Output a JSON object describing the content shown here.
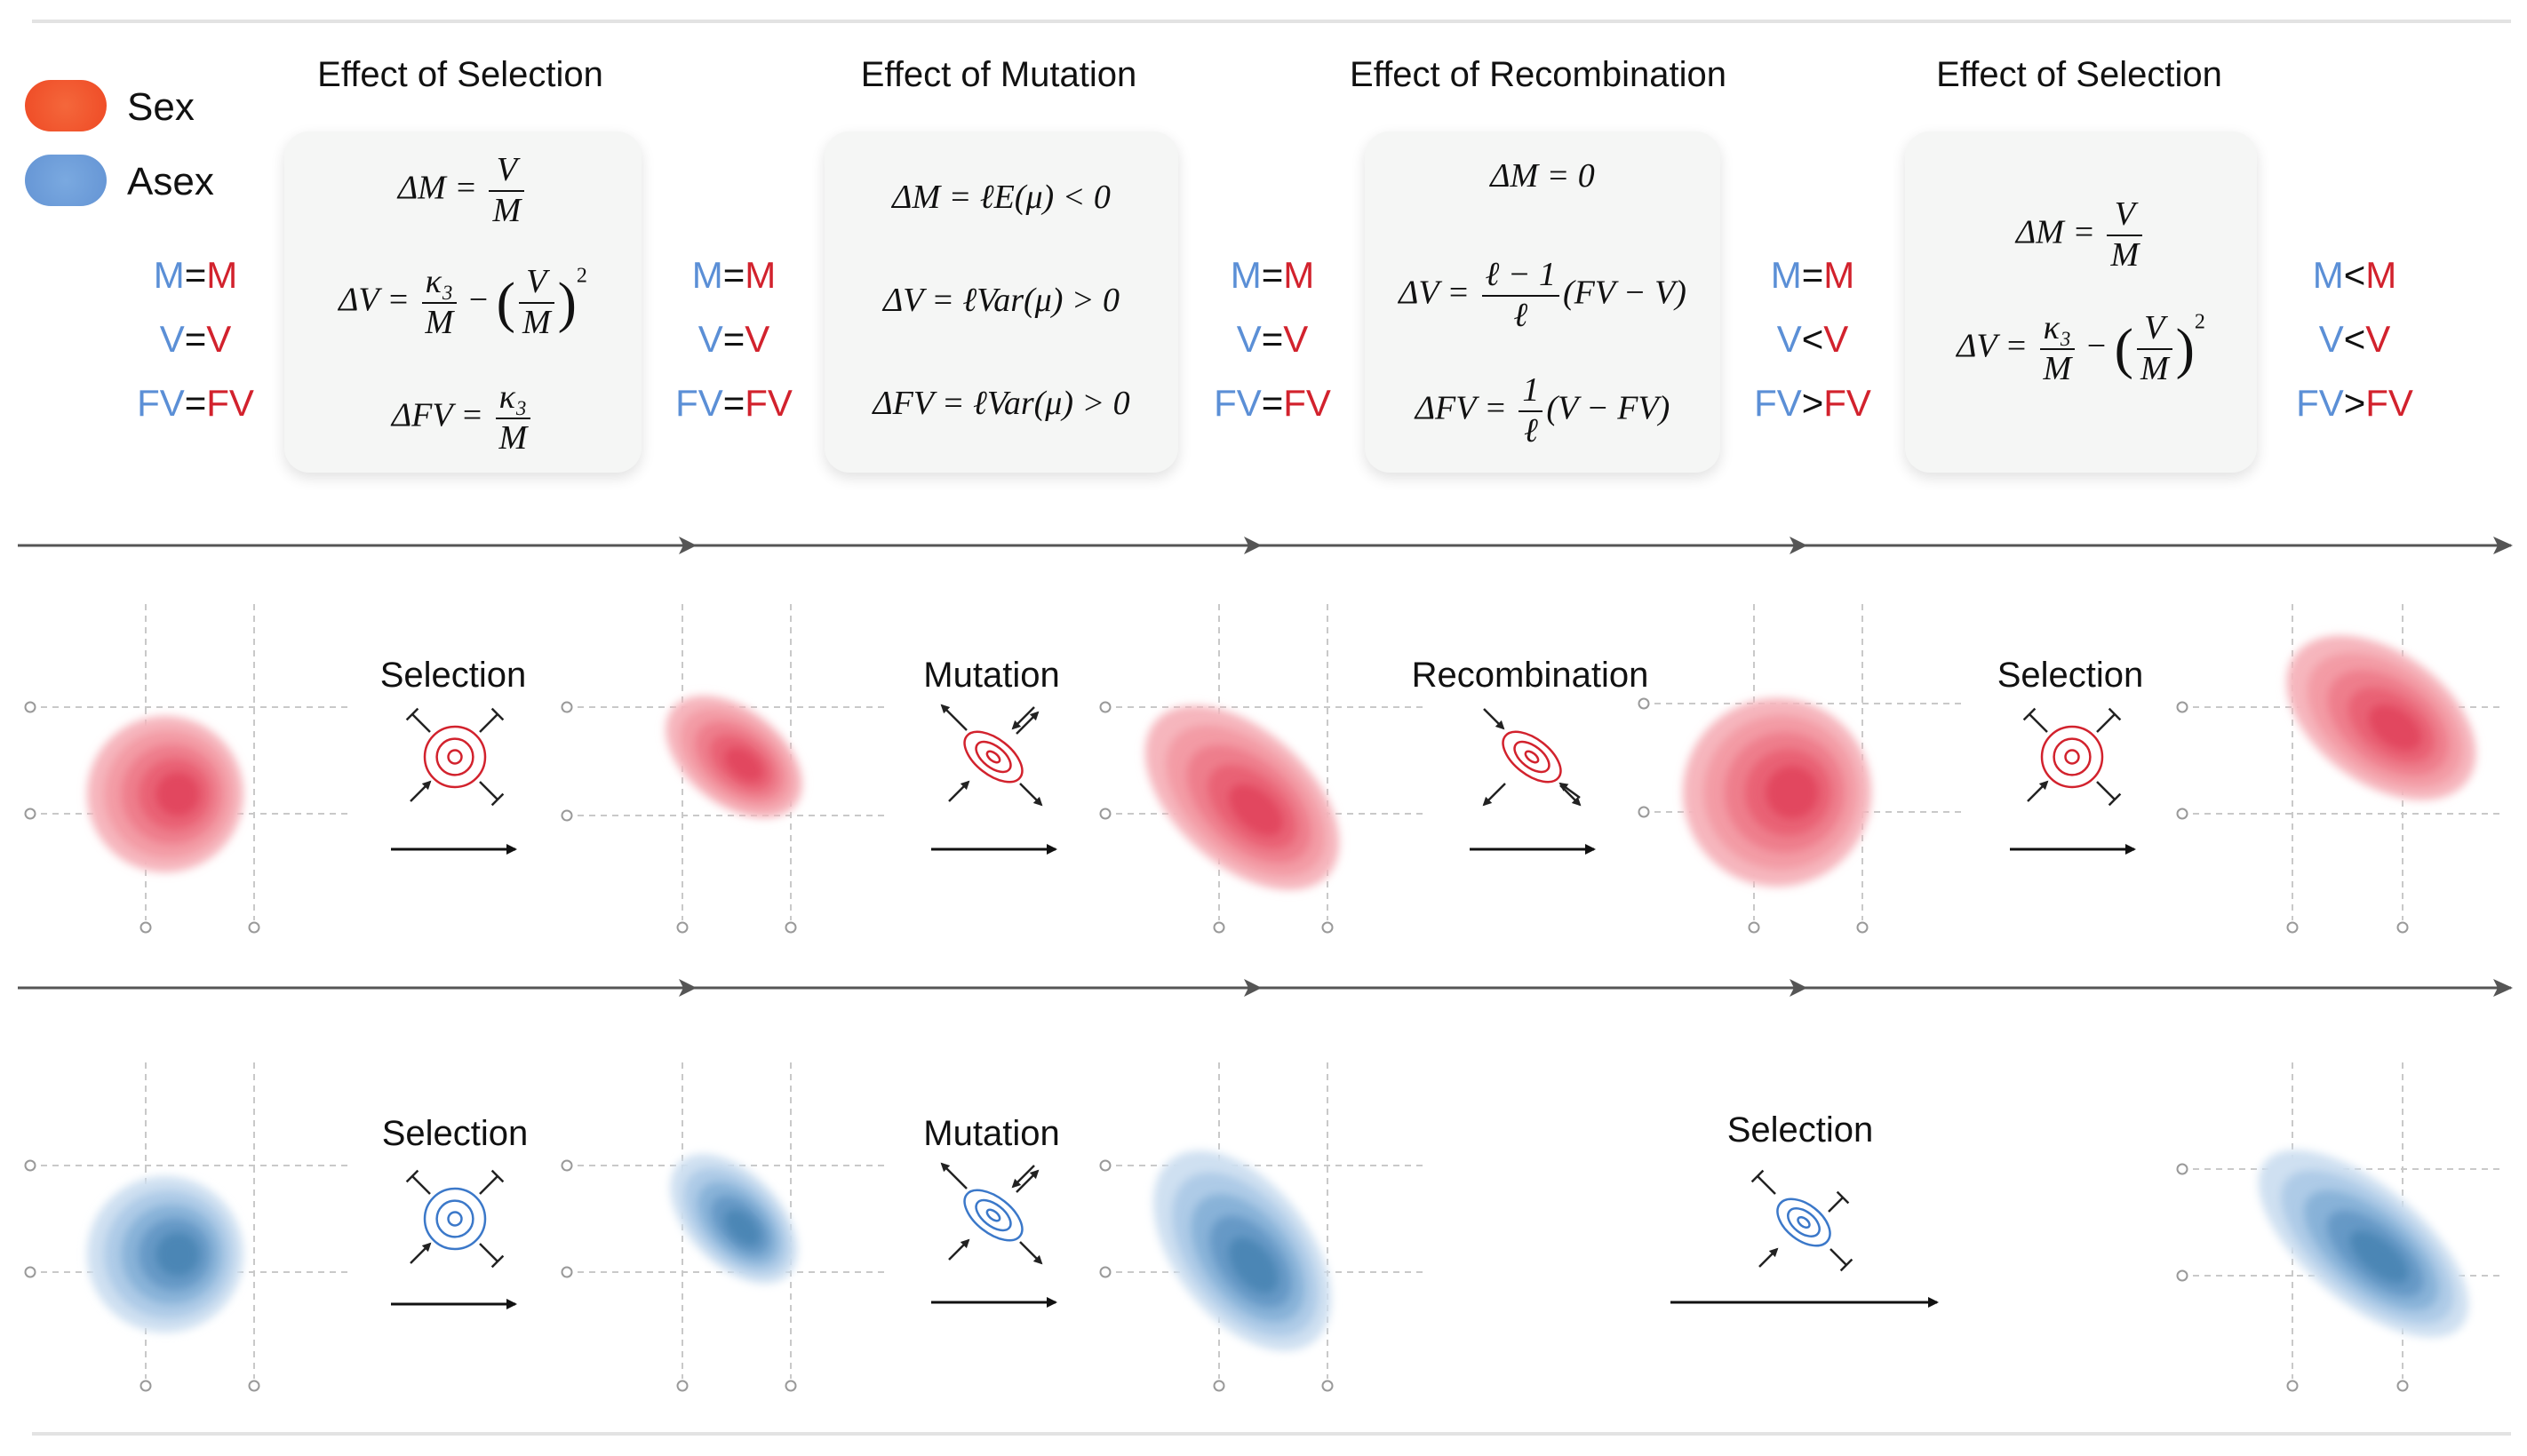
{
  "legend": [
    {
      "label": "Sex",
      "color": "#f2522c"
    },
    {
      "label": "Asex",
      "color": "#6f9fdc"
    }
  ],
  "columns": [
    {
      "title": "Effect of Selection"
    },
    {
      "title": "Effect of Mutation"
    },
    {
      "title": "Effect of Recombination"
    },
    {
      "title": "Effect of Selection"
    }
  ],
  "equations": {
    "sel1": {
      "dM_lhs": "ΔM =",
      "dM_num": "V",
      "dM_den": "M",
      "dV_lhs": "ΔV =",
      "dV_num": "κ₃",
      "dV_den": "M",
      "dV_mid": "−",
      "dV_sq_num": "V",
      "dV_sq_den": "M",
      "dV_exp": "2",
      "dFV_lhs": "ΔFV =",
      "dFV_num": "κ₃",
      "dFV_den": "M"
    },
    "mut": {
      "dM": "ΔM = ℓE(μ) < 0",
      "dV": "ΔV = ℓVar(μ) > 0",
      "dFV": "ΔFV = ℓVar(μ) > 0"
    },
    "rec": {
      "dM": "ΔM = 0",
      "dV_lhs": "ΔV =",
      "dV_num": "ℓ − 1",
      "dV_den": "ℓ",
      "dV_rhs": "(FV − V)",
      "dFV_lhs": "ΔFV =",
      "dFV_num": "1",
      "dFV_den": "ℓ",
      "dFV_rhs": "(V − FV)"
    },
    "sel2": {
      "dM_lhs": "ΔM =",
      "dM_num": "V",
      "dM_den": "M",
      "dV_lhs": "ΔV =",
      "dV_num": "κ₃",
      "dV_den": "M",
      "dV_mid": "−",
      "dV_sq_num": "V",
      "dV_sq_den": "M",
      "dV_exp": "2"
    }
  },
  "comparisons": [
    {
      "rows": [
        {
          "a": "M",
          "op": "=",
          "b": "M"
        },
        {
          "a": "V",
          "op": "=",
          "b": "V"
        },
        {
          "a": "FV",
          "op": "=",
          "b": "FV"
        }
      ]
    },
    {
      "rows": [
        {
          "a": "M",
          "op": "=",
          "b": "M"
        },
        {
          "a": "V",
          "op": "=",
          "b": "V"
        },
        {
          "a": "FV",
          "op": "=",
          "b": "FV"
        }
      ]
    },
    {
      "rows": [
        {
          "a": "M",
          "op": "=",
          "b": "M"
        },
        {
          "a": "V",
          "op": "=",
          "b": "V"
        },
        {
          "a": "FV",
          "op": "=",
          "b": "FV"
        }
      ]
    },
    {
      "rows": [
        {
          "a": "M",
          "op": "=",
          "b": "M"
        },
        {
          "a": "V",
          "op": "<",
          "b": "V"
        },
        {
          "a": "FV",
          "op": ">",
          "b": "FV"
        }
      ]
    },
    {
      "rows": [
        {
          "a": "M",
          "op": "<",
          "b": "M"
        },
        {
          "a": "V",
          "op": "<",
          "b": "V"
        },
        {
          "a": "FV",
          "op": ">",
          "b": "FV"
        }
      ]
    }
  ],
  "sex_steps": [
    "Selection",
    "Mutation",
    "Recombination",
    "Selection"
  ],
  "asex_steps": [
    "Selection",
    "Mutation",
    "Selection"
  ],
  "palette": {
    "sex": [
      "#f6b6bd",
      "#f39ba5",
      "#ee7e8c",
      "#e96275",
      "#e2475e"
    ],
    "asex": [
      "#cfe0f1",
      "#aecbe7",
      "#88b2d8",
      "#6699c6",
      "#4c86b5"
    ],
    "sex_icon": "#d2222d",
    "asex_icon": "#3b78c9"
  }
}
